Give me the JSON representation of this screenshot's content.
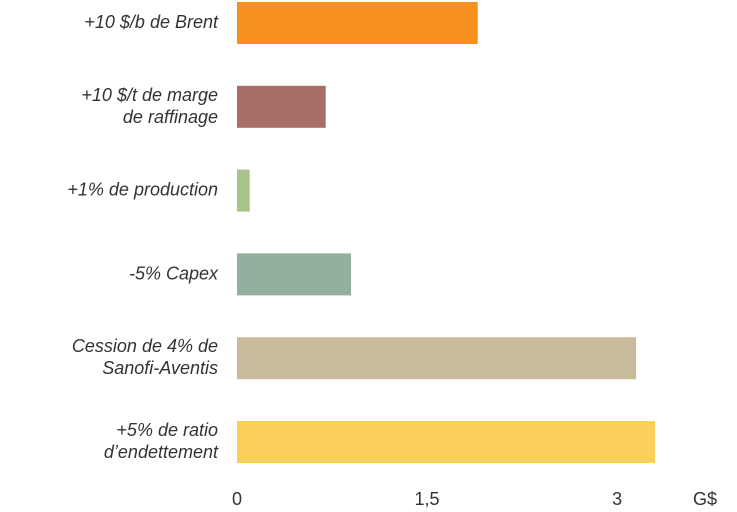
{
  "chart_data": {
    "type": "barh",
    "categories": [
      "+10 $/b de Brent",
      "+10 $/t de marge\nde raffinage",
      "+1% de production",
      "-5% Capex",
      "Cession de 4% de\nSanofi-Aventis",
      "+5% de ratio\nd’endettement"
    ],
    "values": [
      1.9,
      0.7,
      0.1,
      0.9,
      3.15,
      3.3
    ],
    "colors": [
      "#f7901e",
      "#a86e66",
      "#a8c48a",
      "#93b09e",
      "#c9bb9a",
      "#fbd05a"
    ],
    "xlim": [
      0,
      3.5
    ],
    "xticks": [
      0,
      {
        "value": 1.5,
        "label": "1,5"
      },
      3
    ],
    "x_label": "G$"
  }
}
